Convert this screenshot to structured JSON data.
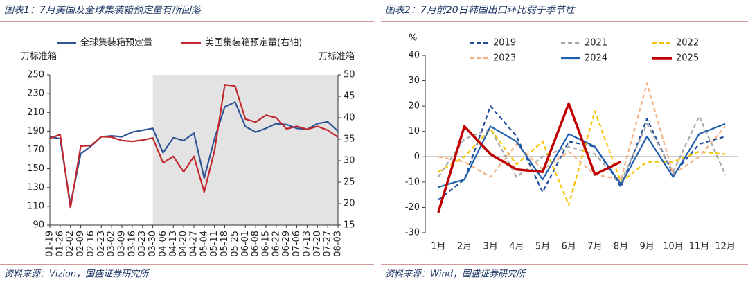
{
  "chart_data": [
    {
      "type": "line",
      "title": "图表1：7月美国及全球集装箱预定量有所回落",
      "source": "资料来源：Vizion，国盛证券研究所",
      "ylabel": "万标准箱",
      "y2label": "万标准箱",
      "categories": [
        "01-19",
        "01-26",
        "02-02",
        "02-09",
        "02-16",
        "02-23",
        "03-02",
        "03-09",
        "03-16",
        "03-23",
        "03-30",
        "04-06",
        "04-13",
        "04-20",
        "04-27",
        "05-04",
        "05-11",
        "05-18",
        "05-25",
        "06-01",
        "06-08",
        "06-15",
        "06-22",
        "06-29",
        "07-06",
        "07-13",
        "07-20",
        "07-27",
        "08-03"
      ],
      "series": [
        {
          "name": "全球集装箱预定量",
          "color": "#2f5597",
          "style": "solid",
          "values": [
            184,
            182,
            112,
            166,
            174,
            184,
            185,
            184,
            189,
            191,
            193,
            167,
            183,
            180,
            188,
            140,
            182,
            216,
            221,
            195,
            189,
            193,
            198,
            197,
            193,
            192,
            198,
            200,
            190
          ]
        },
        {
          "name": "美国集装箱预定量(右轴)",
          "color": "#c0282d",
          "style": "solid",
          "axis": "y2",
          "values": [
            35.2,
            36.1,
            19,
            33.4,
            33.5,
            35.6,
            35.5,
            34.7,
            34.5,
            34.8,
            35.3,
            29.5,
            31,
            27.4,
            31,
            22.7,
            32.3,
            47.7,
            47.4,
            39.7,
            39,
            40.6,
            40,
            37.4,
            38,
            37.3,
            38,
            37.1,
            35.5
          ]
        }
      ],
      "shaded_range": [
        "03-30",
        "08-03"
      ],
      "shade_color": "#e3e3e3",
      "ylim": [
        90,
        250
      ],
      "yticks": [
        90,
        110,
        130,
        150,
        170,
        190,
        210,
        230,
        250
      ],
      "y2lim": [
        15,
        50
      ],
      "y2ticks": [
        15,
        20,
        25,
        30,
        35,
        40,
        45,
        50
      ],
      "legend": "top"
    },
    {
      "type": "line",
      "title": "图表2：7月前20日韩国出口环比弱于季节性",
      "source": "资料来源：Wind，国盛证券研究所",
      "ylabel": "%",
      "categories": [
        "1月",
        "2月",
        "3月",
        "4月",
        "5月",
        "6月",
        "7月",
        "8月",
        "9月",
        "10月",
        "11月",
        "12月"
      ],
      "series": [
        {
          "name": "2019",
          "color": "#1f4e9c",
          "style": "dashed",
          "values": [
            -17,
            -9,
            20,
            8,
            -14,
            6,
            4,
            -12,
            15,
            -7,
            5,
            8
          ]
        },
        {
          "name": "2021",
          "color": "#a6a6a6",
          "style": "dashed",
          "values": [
            -8,
            7,
            11,
            -8,
            0,
            4,
            1,
            -10,
            13,
            -6,
            16,
            -7
          ]
        },
        {
          "name": "2022",
          "color": "#f5c400",
          "style": "dashed",
          "values": [
            -6,
            0,
            11,
            -3,
            6,
            -19,
            18,
            -10,
            -2,
            -2,
            2,
            1
          ]
        },
        {
          "name": "2023",
          "color": "#f4b183",
          "style": "dashed",
          "values": [
            0,
            -2,
            -8,
            5,
            -5,
            2,
            -7,
            -9,
            29,
            -7,
            0,
            12
          ]
        },
        {
          "name": "2024",
          "color": "#1f5fae",
          "style": "solid",
          "values": [
            -12,
            -9,
            12,
            6,
            -9,
            9,
            4,
            -11,
            8,
            -8,
            9,
            13
          ]
        },
        {
          "name": "2025",
          "color": "#c00000",
          "style": "bold",
          "values": [
            -22,
            12,
            1,
            -5,
            -6,
            21,
            -7,
            -2,
            null,
            null,
            null,
            null
          ]
        }
      ],
      "ylim": [
        -30,
        40
      ],
      "yticks": [
        -30,
        -20,
        -10,
        0,
        10,
        20,
        30,
        40
      ],
      "legend": "top"
    }
  ]
}
